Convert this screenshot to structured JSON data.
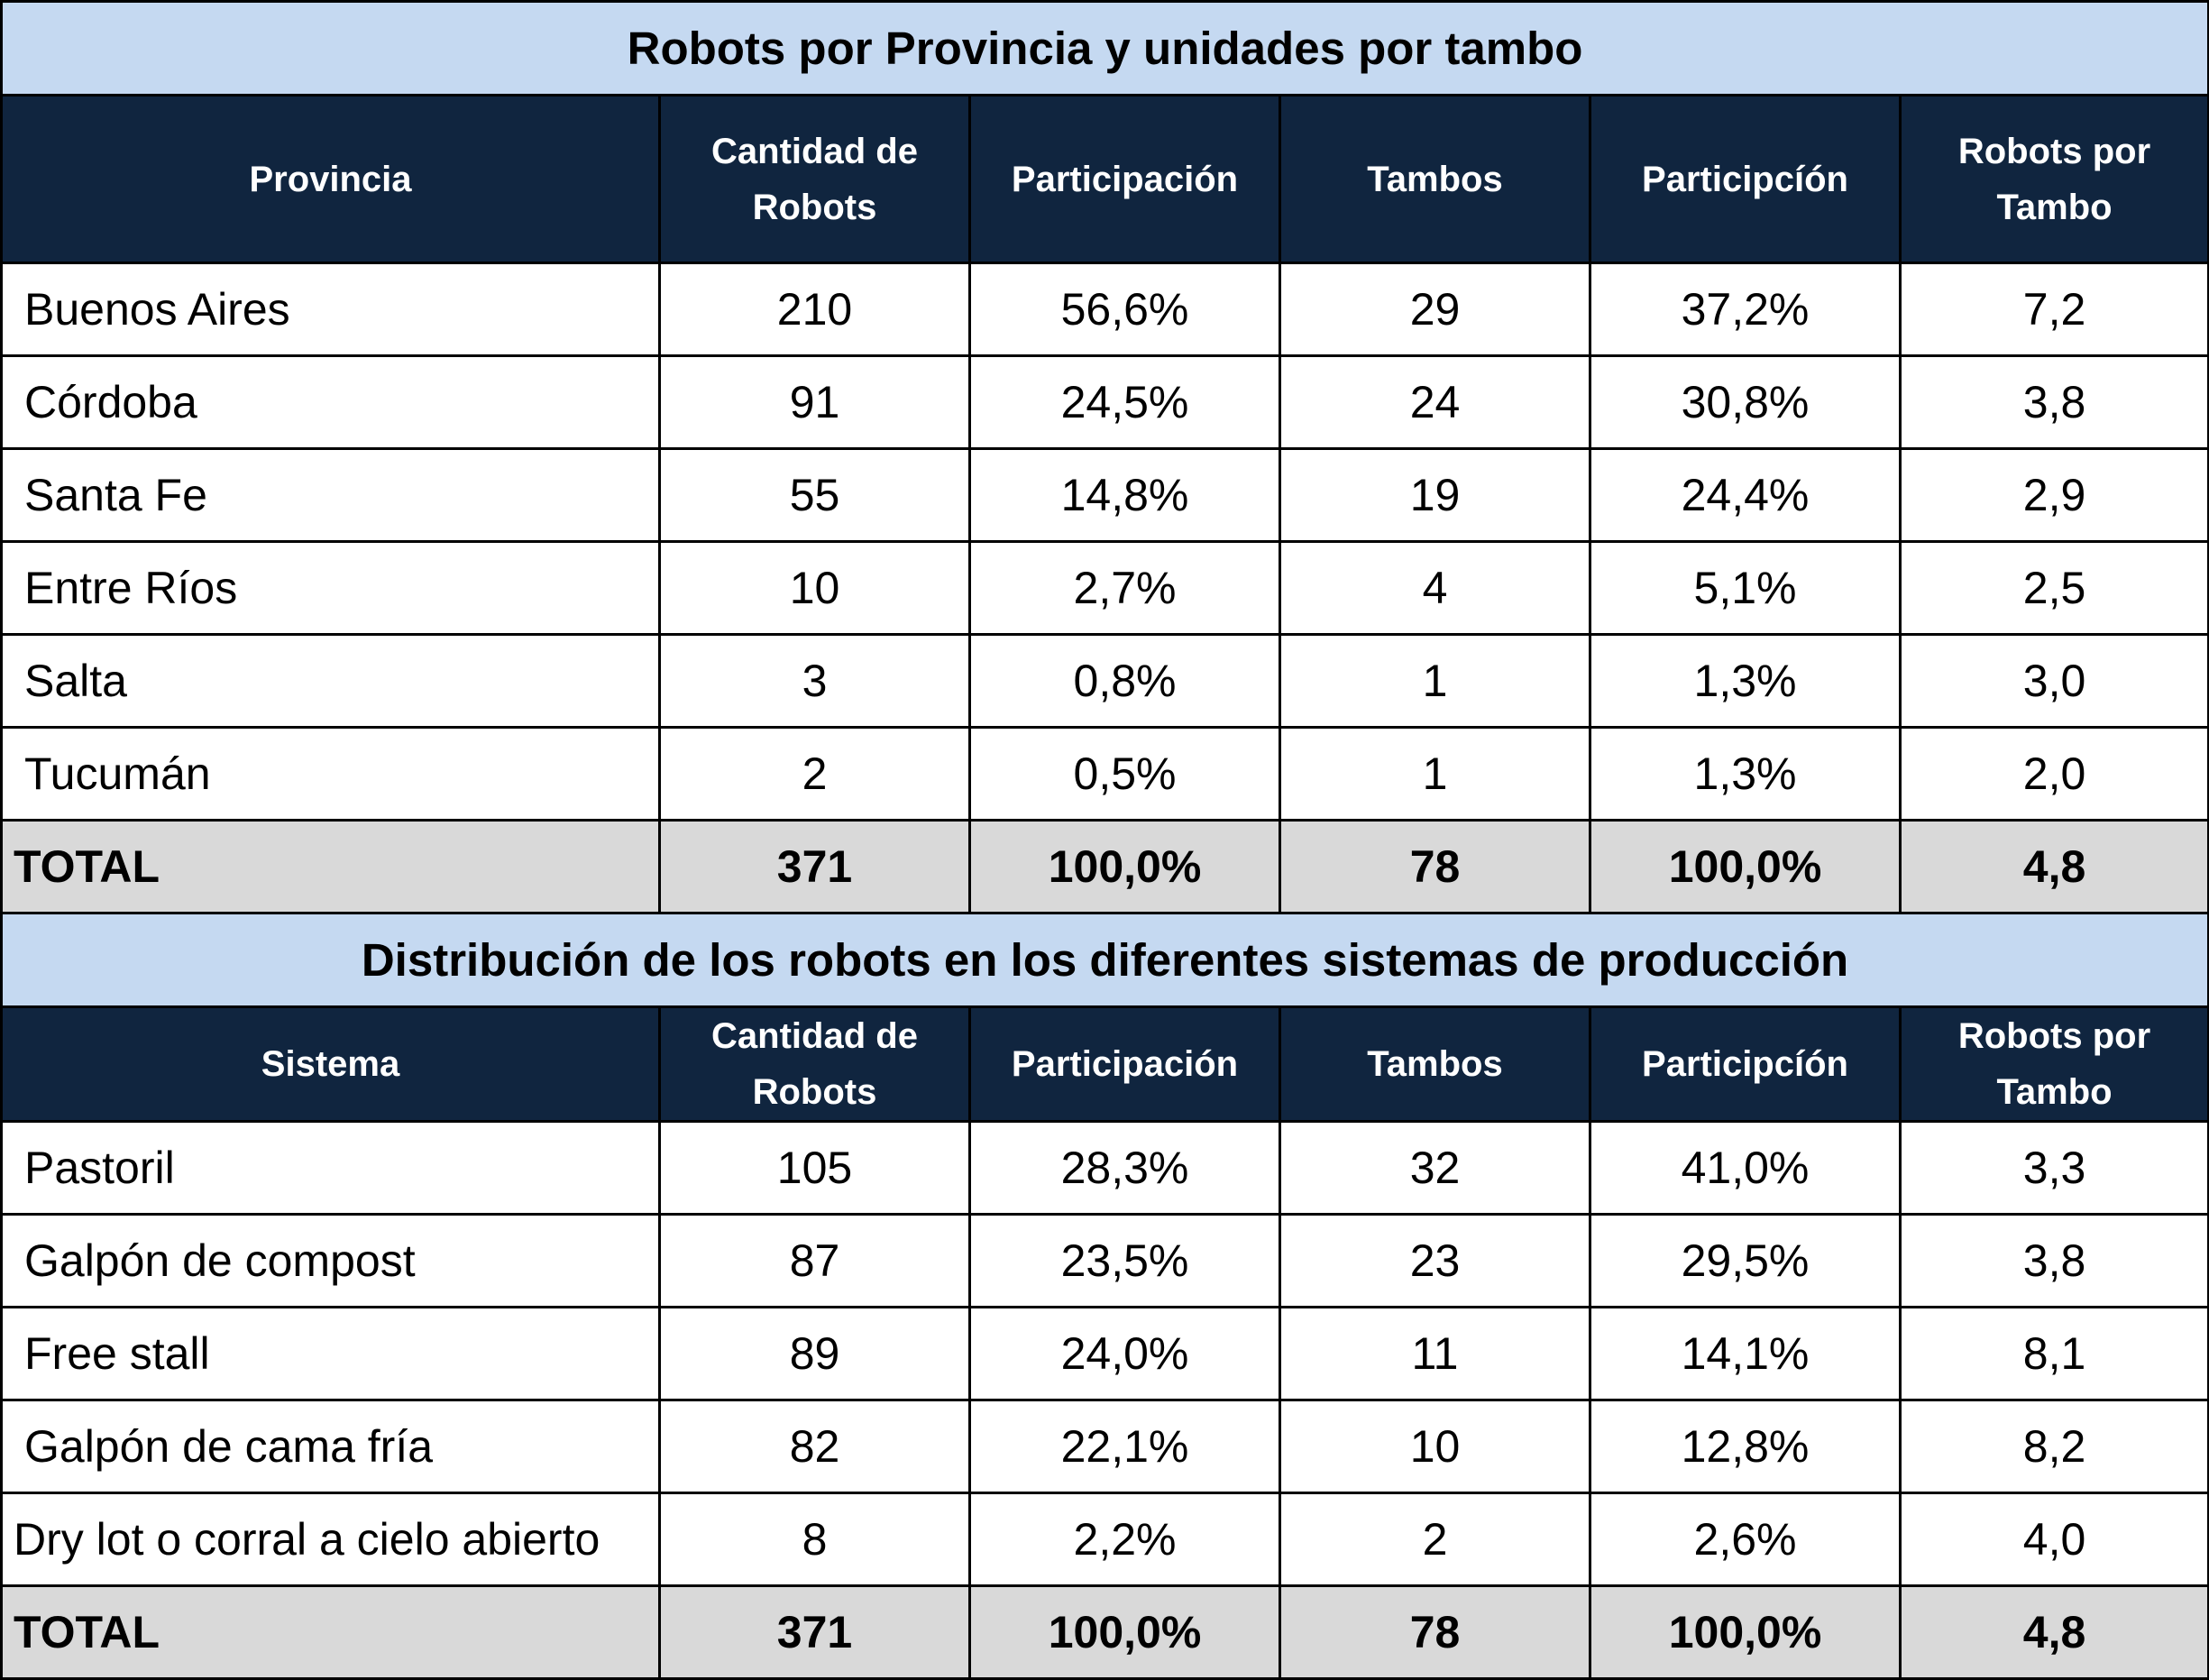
{
  "tables": [
    {
      "title": "Robots por Provincia y unidades por tambo",
      "headers": [
        "Provincia",
        "Cantidad de Robots",
        "Participación",
        "Tambos",
        "Participcíón",
        "Robots por Tambo"
      ],
      "rows": [
        [
          "Buenos Aires",
          "210",
          "56,6%",
          "29",
          "37,2%",
          "7,2"
        ],
        [
          "Córdoba",
          "91",
          "24,5%",
          "24",
          "30,8%",
          "3,8"
        ],
        [
          "Santa Fe",
          "55",
          "14,8%",
          "19",
          "24,4%",
          "2,9"
        ],
        [
          "Entre Ríos",
          "10",
          "2,7%",
          "4",
          "5,1%",
          "2,5"
        ],
        [
          "Salta",
          "3",
          "0,8%",
          "1",
          "1,3%",
          "3,0"
        ],
        [
          "Tucumán",
          "2",
          "0,5%",
          "1",
          "1,3%",
          "2,0"
        ]
      ],
      "total": [
        "TOTAL",
        "371",
        "100,0%",
        "78",
        "100,0%",
        "4,8"
      ]
    },
    {
      "title": "Distribución de los robots en los diferentes sistemas de producción",
      "headers": [
        "Sistema",
        "Cantidad de Robots",
        "Participación",
        "Tambos",
        "Participcíón",
        "Robots por Tambo"
      ],
      "rows": [
        [
          "Pastoril",
          "105",
          "28,3%",
          "32",
          "41,0%",
          "3,3"
        ],
        [
          "Galpón de compost",
          "87",
          "23,5%",
          "23",
          "29,5%",
          "3,8"
        ],
        [
          "Free stall",
          "89",
          "24,0%",
          "11",
          "14,1%",
          "8,1"
        ],
        [
          "Galpón de cama fría",
          "82",
          "22,1%",
          "10",
          "12,8%",
          "8,2"
        ],
        [
          "Dry lot o corral a cielo abierto",
          "8",
          "2,2%",
          "2",
          "2,6%",
          "4,0"
        ]
      ],
      "total": [
        "TOTAL",
        "371",
        "100,0%",
        "78",
        "100,0%",
        "4,8"
      ]
    }
  ]
}
